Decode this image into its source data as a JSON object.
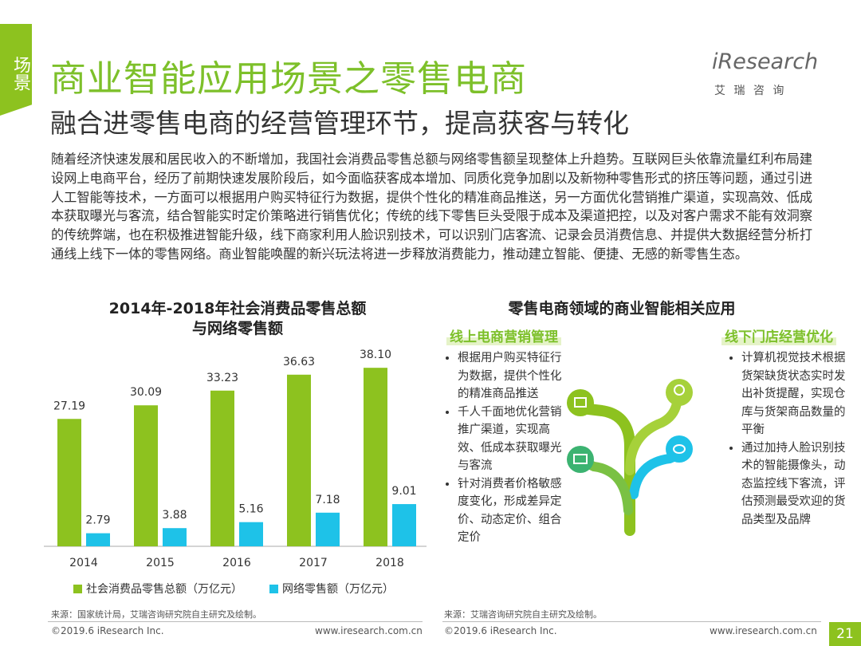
{
  "side_tab": "场景",
  "header": {
    "title": "商业智能应用场景之零售电商",
    "subtitle": "融合进零售电商的经营管理环节，提高获客与转化"
  },
  "logo": {
    "brand": "iResearch",
    "chinese": "艾 瑞 咨 询"
  },
  "body": "随着经济快速发展和居民收入的不断增加，我国社会消费品零售总额与网络零售额呈现整体上升趋势。互联网巨头依靠流量红利布局建设网上电商平台，经历了前期快速发展阶段后，如今面临获客成本增加、同质化竞争加剧以及新物种零售形式的挤压等问题，通过引进人工智能等技术，一方面可以根据用户购买特征行为数据，提供个性化的精准商品推送，另一方面优化营销推广渠道，实现高效、低成本获取曝光与客流，结合智能实时定价策略进行销售优化；传统的线下零售巨头受限于成本及渠道把控，以及对客户需求不能有效洞察的传统弊端，也在积极推进智能升级，线下商家利用人脸识别技术，可以识别门店客流、记录会员消费信息、并提供大数据经营分析打通线上线下一体的零售网络。商业智能唤醒的新兴玩法将进一步释放消费能力，推动建立智能、便捷、无感的新零售生态。",
  "chart_data": {
    "type": "bar",
    "title": [
      "2014年-2018年社会消费品零售总额",
      "与网络零售额"
    ],
    "categories": [
      "2014",
      "2015",
      "2016",
      "2017",
      "2018"
    ],
    "series": [
      {
        "name": "社会消费品零售总额（万亿元）",
        "color": "#8dc21f",
        "values": [
          27.19,
          30.09,
          33.23,
          36.63,
          38.1
        ],
        "value_labels": [
          "27.19",
          "30.09",
          "33.23",
          "36.63",
          "38.10"
        ]
      },
      {
        "name": "网络零售额（万亿元）",
        "color": "#1ec2e8",
        "values": [
          2.79,
          3.88,
          5.16,
          7.18,
          9.01
        ],
        "value_labels": [
          "2.79",
          "3.88",
          "5.16",
          "7.18",
          "9.01"
        ]
      }
    ],
    "ylim": [
      0,
      40
    ],
    "source": "来源：国家统计局，艾瑞咨询研究院自主研究及绘制。"
  },
  "applications": {
    "title": "零售电商领域的商业智能相关应用",
    "online": {
      "title": "线上电商营销管理",
      "items": [
        "根据用户购买特征行为数据，提供个性化的精准商品推送",
        "千人千面地优化营销推广渠道，实现高效、低成本获取曝光与客流",
        "针对消费者价格敏感度变化，形成差异定价、动态定价、组合定价"
      ]
    },
    "offline": {
      "title": "线下门店经营优化",
      "items": [
        "计算机视觉技术根据货架缺货状态实时发出补货提醒，实现仓库与货架商品数量的平衡",
        "通过加持人脸识别技术的智能摄像头，动态监控线下客流，评估预测最受欢迎的货品类型及品牌"
      ]
    },
    "source": "来源：艾瑞咨询研究院自主研究及绘制。"
  },
  "footer": {
    "left_copyright": "©2019.6 iResearch Inc.",
    "left_url": "www.iresearch.com.cn",
    "right_copyright": "©2019.6 iResearch Inc.",
    "right_url": "www.iresearch.com.cn"
  },
  "page_number": "21"
}
